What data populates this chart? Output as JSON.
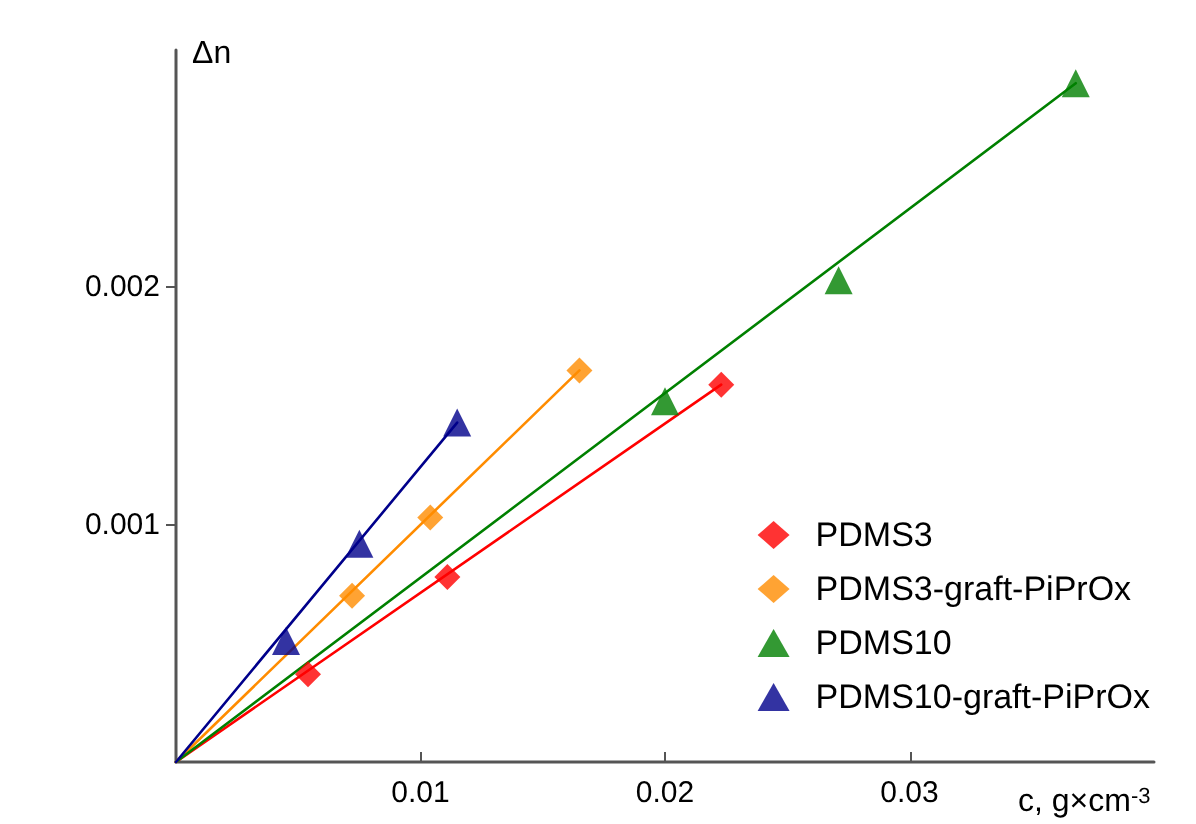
{
  "chart_data": {
    "type": "scatter",
    "xlabel": "c, g×cm$^{-3}$",
    "ylabel": "Δn",
    "xlim": [
      0,
      0.04
    ],
    "ylim": [
      0,
      0.003
    ],
    "xticks": [
      0.01,
      0.02,
      0.03
    ],
    "yticks": [
      0.001,
      0.002
    ],
    "grid": false,
    "legend": "bottom right",
    "series": [
      {
        "name": "PDMS3",
        "color": "#ff0000",
        "marker": "diamond",
        "x": [
          0.0054,
          0.0111,
          0.0223
        ],
        "values": [
          0.00037,
          0.00078,
          0.00159
        ]
      },
      {
        "name": "PDMS3-graft-PiPrOx",
        "color": "#ff8c00",
        "marker": "diamond",
        "x": [
          0.0072,
          0.0104,
          0.0165
        ],
        "values": [
          0.0007,
          0.00103,
          0.00165
        ]
      },
      {
        "name": "PDMS10",
        "color": "#008000",
        "marker": "triangle",
        "x": [
          0.02,
          0.0271,
          0.0368
        ],
        "values": [
          0.00152,
          0.00203,
          0.00286
        ]
      },
      {
        "name": "PDMS10-graft-PiPrOx",
        "color": "#00008b",
        "marker": "triangle",
        "x": [
          0.0045,
          0.0075,
          0.0115
        ],
        "values": [
          0.00051,
          0.00092,
          0.00143
        ]
      },
      {
        "type": "line",
        "color": "#ff0000",
        "marker": "none",
        "x": [
          0,
          0.0223
        ],
        "values": [
          0,
          0.00159
        ]
      },
      {
        "type": "line",
        "color": "#ff8c00",
        "marker": "none",
        "x": [
          0,
          0.0165
        ],
        "values": [
          0,
          0.00165
        ]
      },
      {
        "type": "line",
        "color": "#008000",
        "marker": "none",
        "x": [
          0,
          0.0368
        ],
        "values": [
          0,
          0.00286
        ]
      },
      {
        "type": "line",
        "color": "#00008b",
        "marker": "none",
        "x": [
          0,
          0.0115
        ],
        "values": [
          0,
          0.00143
        ]
      }
    ]
  }
}
